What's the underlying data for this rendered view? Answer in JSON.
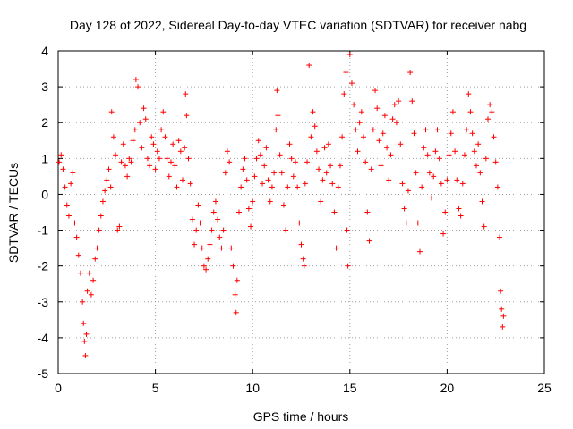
{
  "chart_data": {
    "type": "scatter",
    "title": "Day 128 of 2022, Sidereal Day-to-day VTEC variation (SDTVAR) for receiver nabg",
    "xlabel": "GPS time / hours",
    "ylabel": "SDTVAR / TECUs",
    "xlim": [
      0,
      25
    ],
    "ylim": [
      -5,
      4
    ],
    "xticks": [
      0,
      5,
      10,
      15,
      20,
      25
    ],
    "yticks": [
      -5,
      -4,
      -3,
      -2,
      -1,
      0,
      1,
      2,
      3,
      4
    ],
    "grid": true,
    "marker": "+",
    "color": "#ff0000",
    "series": [
      {
        "name": "SDTVAR",
        "points": [
          [
            0.05,
            0.9
          ],
          [
            0.15,
            1.1
          ],
          [
            0.25,
            0.7
          ],
          [
            0.35,
            0.2
          ],
          [
            0.45,
            -0.3
          ],
          [
            0.55,
            -0.6
          ],
          [
            0.65,
            0.3
          ],
          [
            0.75,
            0.6
          ],
          [
            0.85,
            -0.8
          ],
          [
            0.95,
            -1.2
          ],
          [
            1.05,
            -1.7
          ],
          [
            1.15,
            -2.2
          ],
          [
            1.25,
            -3.0
          ],
          [
            1.3,
            -3.6
          ],
          [
            1.35,
            -4.1
          ],
          [
            1.4,
            -4.5
          ],
          [
            1.45,
            -3.9
          ],
          [
            1.5,
            -2.7
          ],
          [
            1.6,
            -2.2
          ],
          [
            1.7,
            -2.8
          ],
          [
            1.8,
            -2.4
          ],
          [
            1.9,
            -1.8
          ],
          [
            2.0,
            -1.5
          ],
          [
            2.1,
            -1.0
          ],
          [
            2.2,
            -0.6
          ],
          [
            2.3,
            -0.2
          ],
          [
            2.4,
            0.1
          ],
          [
            2.5,
            0.4
          ],
          [
            2.6,
            0.7
          ],
          [
            2.7,
            0.2
          ],
          [
            2.75,
            2.3
          ],
          [
            2.85,
            1.6
          ],
          [
            2.95,
            1.1
          ],
          [
            3.05,
            -1.0
          ],
          [
            3.15,
            -0.9
          ],
          [
            3.25,
            0.9
          ],
          [
            3.35,
            1.4
          ],
          [
            3.45,
            0.8
          ],
          [
            3.55,
            0.5
          ],
          [
            3.65,
            1.0
          ],
          [
            3.75,
            0.9
          ],
          [
            3.85,
            1.5
          ],
          [
            3.95,
            1.8
          ],
          [
            4.0,
            3.2
          ],
          [
            4.1,
            3.0
          ],
          [
            4.2,
            2.0
          ],
          [
            4.3,
            1.3
          ],
          [
            4.4,
            2.4
          ],
          [
            4.5,
            2.1
          ],
          [
            4.6,
            1.0
          ],
          [
            4.7,
            0.8
          ],
          [
            4.8,
            1.6
          ],
          [
            4.9,
            1.4
          ],
          [
            5.0,
            0.7
          ],
          [
            5.1,
            1.2
          ],
          [
            5.2,
            1.0
          ],
          [
            5.3,
            1.8
          ],
          [
            5.4,
            2.3
          ],
          [
            5.5,
            1.6
          ],
          [
            5.6,
            1.0
          ],
          [
            5.7,
            0.5
          ],
          [
            5.8,
            0.9
          ],
          [
            5.9,
            1.4
          ],
          [
            6.0,
            0.8
          ],
          [
            6.1,
            0.2
          ],
          [
            6.2,
            1.5
          ],
          [
            6.3,
            1.2
          ],
          [
            6.4,
            0.4
          ],
          [
            6.5,
            1.3
          ],
          [
            6.55,
            2.8
          ],
          [
            6.6,
            2.2
          ],
          [
            6.7,
            1.0
          ],
          [
            6.8,
            0.3
          ],
          [
            6.9,
            -0.7
          ],
          [
            7.0,
            -1.4
          ],
          [
            7.1,
            -1.0
          ],
          [
            7.2,
            -0.3
          ],
          [
            7.3,
            -0.8
          ],
          [
            7.4,
            -1.5
          ],
          [
            7.5,
            -2.0
          ],
          [
            7.6,
            -2.1
          ],
          [
            7.7,
            -1.8
          ],
          [
            7.8,
            -1.4
          ],
          [
            7.9,
            -1.0
          ],
          [
            8.0,
            -0.5
          ],
          [
            8.1,
            -0.2
          ],
          [
            8.2,
            -0.7
          ],
          [
            8.3,
            -1.2
          ],
          [
            8.4,
            -1.5
          ],
          [
            8.5,
            -1.0
          ],
          [
            8.6,
            0.6
          ],
          [
            8.7,
            1.2
          ],
          [
            8.8,
            0.9
          ],
          [
            8.9,
            -1.5
          ],
          [
            9.0,
            -2.0
          ],
          [
            9.1,
            -2.8
          ],
          [
            9.15,
            -3.3
          ],
          [
            9.2,
            -2.4
          ],
          [
            9.3,
            -0.5
          ],
          [
            9.4,
            0.2
          ],
          [
            9.5,
            0.7
          ],
          [
            9.6,
            1.0
          ],
          [
            9.7,
            0.4
          ],
          [
            9.8,
            -0.4
          ],
          [
            9.9,
            -0.9
          ],
          [
            10.0,
            -0.2
          ],
          [
            10.1,
            0.5
          ],
          [
            10.2,
            1.0
          ],
          [
            10.3,
            1.5
          ],
          [
            10.4,
            1.1
          ],
          [
            10.5,
            0.3
          ],
          [
            10.6,
            0.8
          ],
          [
            10.7,
            1.3
          ],
          [
            10.8,
            0.4
          ],
          [
            10.9,
            -0.2
          ],
          [
            11.0,
            0.2
          ],
          [
            11.1,
            0.6
          ],
          [
            11.2,
            1.8
          ],
          [
            11.25,
            2.9
          ],
          [
            11.3,
            2.2
          ],
          [
            11.4,
            1.1
          ],
          [
            11.5,
            0.6
          ],
          [
            11.6,
            -0.3
          ],
          [
            11.7,
            -1.0
          ],
          [
            11.8,
            0.2
          ],
          [
            11.9,
            1.4
          ],
          [
            12.0,
            1.0
          ],
          [
            12.1,
            0.5
          ],
          [
            12.2,
            0.9
          ],
          [
            12.3,
            0.2
          ],
          [
            12.4,
            -0.8
          ],
          [
            12.5,
            -1.4
          ],
          [
            12.6,
            -1.8
          ],
          [
            12.65,
            -2.0
          ],
          [
            12.7,
            0.3
          ],
          [
            12.8,
            0.9
          ],
          [
            12.9,
            3.6
          ],
          [
            13.0,
            1.6
          ],
          [
            13.1,
            2.3
          ],
          [
            13.2,
            1.9
          ],
          [
            13.3,
            1.2
          ],
          [
            13.4,
            0.7
          ],
          [
            13.5,
            -0.2
          ],
          [
            13.6,
            0.4
          ],
          [
            13.7,
            1.3
          ],
          [
            13.8,
            0.6
          ],
          [
            13.9,
            1.4
          ],
          [
            14.0,
            0.8
          ],
          [
            14.1,
            0.3
          ],
          [
            14.2,
            -0.5
          ],
          [
            14.3,
            -1.5
          ],
          [
            14.4,
            0.2
          ],
          [
            14.5,
            0.8
          ],
          [
            14.6,
            1.6
          ],
          [
            14.7,
            2.8
          ],
          [
            14.8,
            3.4
          ],
          [
            14.85,
            -1.0
          ],
          [
            14.9,
            -2.0
          ],
          [
            15.0,
            3.9
          ],
          [
            15.1,
            3.1
          ],
          [
            15.2,
            2.5
          ],
          [
            15.3,
            1.8
          ],
          [
            15.4,
            1.2
          ],
          [
            15.5,
            2.0
          ],
          [
            15.6,
            2.3
          ],
          [
            15.7,
            1.6
          ],
          [
            15.8,
            0.9
          ],
          [
            15.9,
            -0.5
          ],
          [
            16.0,
            -1.3
          ],
          [
            16.1,
            0.7
          ],
          [
            16.2,
            1.8
          ],
          [
            16.3,
            2.9
          ],
          [
            16.4,
            2.4
          ],
          [
            16.5,
            1.5
          ],
          [
            16.6,
            0.8
          ],
          [
            16.7,
            1.7
          ],
          [
            16.8,
            2.2
          ],
          [
            16.9,
            1.3
          ],
          [
            17.0,
            0.4
          ],
          [
            17.1,
            1.1
          ],
          [
            17.2,
            2.1
          ],
          [
            17.3,
            2.5
          ],
          [
            17.4,
            2.0
          ],
          [
            17.5,
            2.6
          ],
          [
            17.6,
            1.4
          ],
          [
            17.7,
            0.3
          ],
          [
            17.8,
            -0.4
          ],
          [
            17.9,
            -0.8
          ],
          [
            18.0,
            0.1
          ],
          [
            18.1,
            3.4
          ],
          [
            18.2,
            2.6
          ],
          [
            18.3,
            1.7
          ],
          [
            18.4,
            0.6
          ],
          [
            18.5,
            -0.8
          ],
          [
            18.6,
            -1.6
          ],
          [
            18.7,
            0.2
          ],
          [
            18.8,
            1.3
          ],
          [
            18.9,
            1.8
          ],
          [
            19.0,
            1.1
          ],
          [
            19.1,
            0.6
          ],
          [
            19.2,
            -0.1
          ],
          [
            19.3,
            0.5
          ],
          [
            19.4,
            1.2
          ],
          [
            19.5,
            1.8
          ],
          [
            19.6,
            1.0
          ],
          [
            19.7,
            0.3
          ],
          [
            19.8,
            -1.1
          ],
          [
            19.9,
            -0.5
          ],
          [
            20.0,
            0.4
          ],
          [
            20.1,
            1.1
          ],
          [
            20.2,
            1.7
          ],
          [
            20.3,
            2.3
          ],
          [
            20.4,
            1.2
          ],
          [
            20.5,
            0.4
          ],
          [
            20.6,
            -0.4
          ],
          [
            20.7,
            -0.6
          ],
          [
            20.8,
            0.3
          ],
          [
            20.9,
            1.1
          ],
          [
            21.0,
            1.8
          ],
          [
            21.1,
            2.8
          ],
          [
            21.2,
            2.3
          ],
          [
            21.3,
            1.7
          ],
          [
            21.4,
            1.2
          ],
          [
            21.5,
            0.8
          ],
          [
            21.6,
            1.4
          ],
          [
            21.7,
            0.6
          ],
          [
            21.8,
            -0.2
          ],
          [
            21.9,
            -0.9
          ],
          [
            22.0,
            1.0
          ],
          [
            22.1,
            2.1
          ],
          [
            22.2,
            2.5
          ],
          [
            22.3,
            2.3
          ],
          [
            22.4,
            1.6
          ],
          [
            22.5,
            0.9
          ],
          [
            22.6,
            0.2
          ],
          [
            22.7,
            -1.2
          ],
          [
            22.75,
            -2.7
          ],
          [
            22.8,
            -3.2
          ],
          [
            22.85,
            -3.7
          ],
          [
            22.9,
            -3.4
          ]
        ]
      }
    ]
  }
}
